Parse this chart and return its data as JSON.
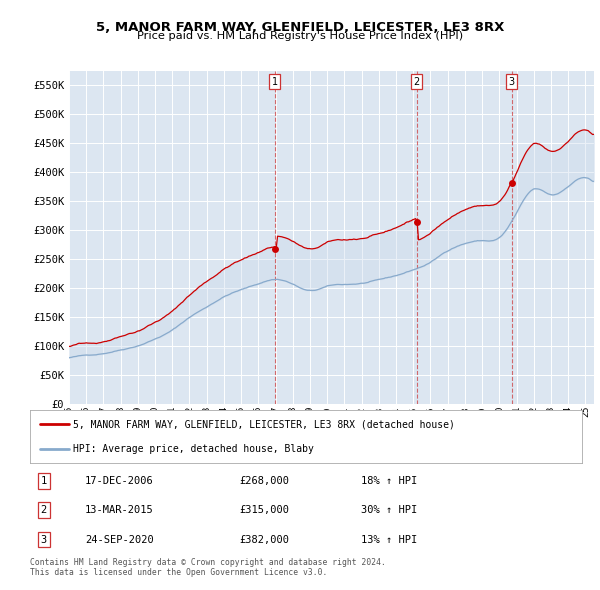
{
  "title1": "5, MANOR FARM WAY, GLENFIELD, LEICESTER, LE3 8RX",
  "title2": "Price paid vs. HM Land Registry's House Price Index (HPI)",
  "bg_color": "#dce6f1",
  "fig_bg_color": "#ffffff",
  "ylim": [
    0,
    575000
  ],
  "yticks": [
    0,
    50000,
    100000,
    150000,
    200000,
    250000,
    300000,
    350000,
    400000,
    450000,
    500000,
    550000
  ],
  "ytick_labels": [
    "£0",
    "£50K",
    "£100K",
    "£150K",
    "£200K",
    "£250K",
    "£300K",
    "£350K",
    "£400K",
    "£450K",
    "£500K",
    "£550K"
  ],
  "sale_prices": [
    268000,
    315000,
    382000
  ],
  "sale_labels": [
    "1",
    "2",
    "3"
  ],
  "sale_hpi_pct": [
    "18%",
    "30%",
    "13%"
  ],
  "sale_date_labels": [
    "17-DEC-2006",
    "13-MAR-2015",
    "24-SEP-2020"
  ],
  "red_color": "#cc0000",
  "blue_color": "#88aacc",
  "blue_fill": "#c8d8eb",
  "legend_label1": "5, MANOR FARM WAY, GLENFIELD, LEICESTER, LE3 8RX (detached house)",
  "legend_label2": "HPI: Average price, detached house, Blaby",
  "footnote1": "Contains HM Land Registry data © Crown copyright and database right 2024.",
  "footnote2": "This data is licensed under the Open Government Licence v3.0."
}
